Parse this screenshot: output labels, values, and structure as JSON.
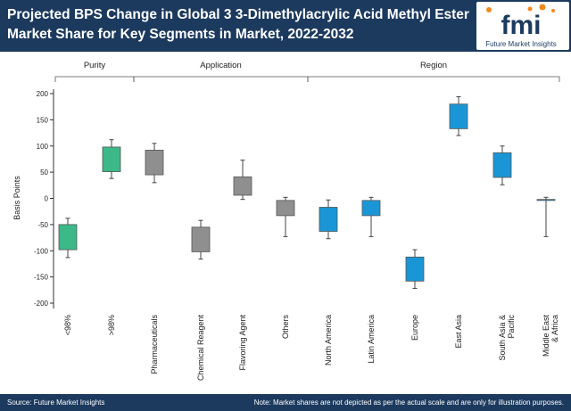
{
  "header": {
    "title_line1": "Projected BPS Change in Global 3 3-Dimethylacrylic Acid Methyl Ester",
    "title_line2": "Market Share for Key Segments in Market, 2022-2032"
  },
  "logo": {
    "mark": "fmi",
    "tagline": "Future Market Insights"
  },
  "footer": {
    "source": "Source: Future Market Insights",
    "note": "Note: Market shares are not depicted as per the actual scale and are only for illustration purposes."
  },
  "colors": {
    "header": "#1c3a5e",
    "purity": "#3cb889",
    "application": "#8f8f8f",
    "region": "#1a96d6",
    "logo_orange": "#f08a1c"
  },
  "chart_data": {
    "type": "box",
    "ylabel": "Basis Points",
    "ylim": [
      -200,
      200
    ],
    "yticks": [
      200,
      150,
      100,
      50,
      0,
      -50,
      -100,
      -150,
      -200
    ],
    "groups": [
      {
        "name": "Purity",
        "categories": [
          "<98%",
          ">98%"
        ]
      },
      {
        "name": "Application",
        "categories": [
          "Pharmaceuticals",
          "Chemical Reagent",
          "Flavoring Agent",
          "Others"
        ]
      },
      {
        "name": "Region",
        "categories": [
          "North America",
          "Latin America",
          "Europe",
          "East Asia",
          "South Asia & Pacific",
          "Middle East & Africa"
        ]
      }
    ],
    "series": [
      {
        "name": "<98%",
        "group": "Purity",
        "low": -113,
        "q1": -98,
        "q3": -50,
        "high": -38
      },
      {
        "name": ">98%",
        "group": "Purity",
        "low": 38,
        "q1": 51,
        "q3": 98,
        "high": 112
      },
      {
        "name": "Pharmaceuticals",
        "group": "Application",
        "low": 30,
        "q1": 45,
        "q3": 92,
        "high": 105
      },
      {
        "name": "Chemical Reagent",
        "group": "Application",
        "low": -116,
        "q1": -102,
        "q3": -55,
        "high": -42
      },
      {
        "name": "Flavoring Agent",
        "group": "Application",
        "low": -2,
        "q1": 6,
        "q3": 41,
        "high": 73
      },
      {
        "name": "Others",
        "group": "Application",
        "low": -73,
        "q1": -33,
        "q3": -4,
        "high": 2
      },
      {
        "name": "North America",
        "group": "Region",
        "low": -77,
        "q1": -63,
        "q3": -17,
        "high": -3
      },
      {
        "name": "Latin America",
        "group": "Region",
        "low": -73,
        "q1": -33,
        "q3": -4,
        "high": 2
      },
      {
        "name": "Europe",
        "group": "Region",
        "low": -172,
        "q1": -158,
        "q3": -112,
        "high": -98
      },
      {
        "name": "East Asia",
        "group": "Region",
        "low": 120,
        "q1": 133,
        "q3": 180,
        "high": 194
      },
      {
        "name": "South Asia & Pacific",
        "group": "Region",
        "low": 26,
        "q1": 40,
        "q3": 87,
        "high": 100
      },
      {
        "name": "Middle East & Africa",
        "group": "Region",
        "low": -73,
        "q1": -4,
        "q3": -2,
        "high": 2
      }
    ]
  }
}
